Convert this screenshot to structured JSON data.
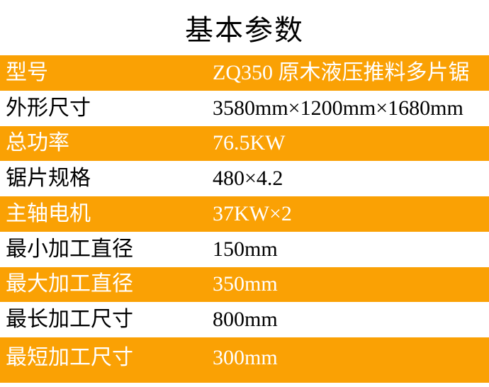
{
  "title": "基本参数",
  "colors": {
    "accent_orange": "#FAA104",
    "text_on_orange": "#FFFFFF",
    "text_on_white": "#000000",
    "title_text": "#000000"
  },
  "table": {
    "columns": [
      "parameter",
      "value"
    ],
    "rows": [
      {
        "label": "型号",
        "value": "ZQ350 原木液压推料多片锯"
      },
      {
        "label": "外形尺寸",
        "value": "3580mm×1200mm×1680mm"
      },
      {
        "label": "总功率",
        "value": "76.5KW"
      },
      {
        "label": "锯片规格",
        "value": "480×4.2"
      },
      {
        "label": "主轴电机",
        "value": "37KW×2"
      },
      {
        "label": "最小加工直径",
        "value": "150mm"
      },
      {
        "label": "最大加工直径",
        "value": "350mm"
      },
      {
        "label": "最长加工尺寸",
        "value": "800mm"
      },
      {
        "label": "最短加工尺寸",
        "value": "300mm"
      }
    ]
  }
}
